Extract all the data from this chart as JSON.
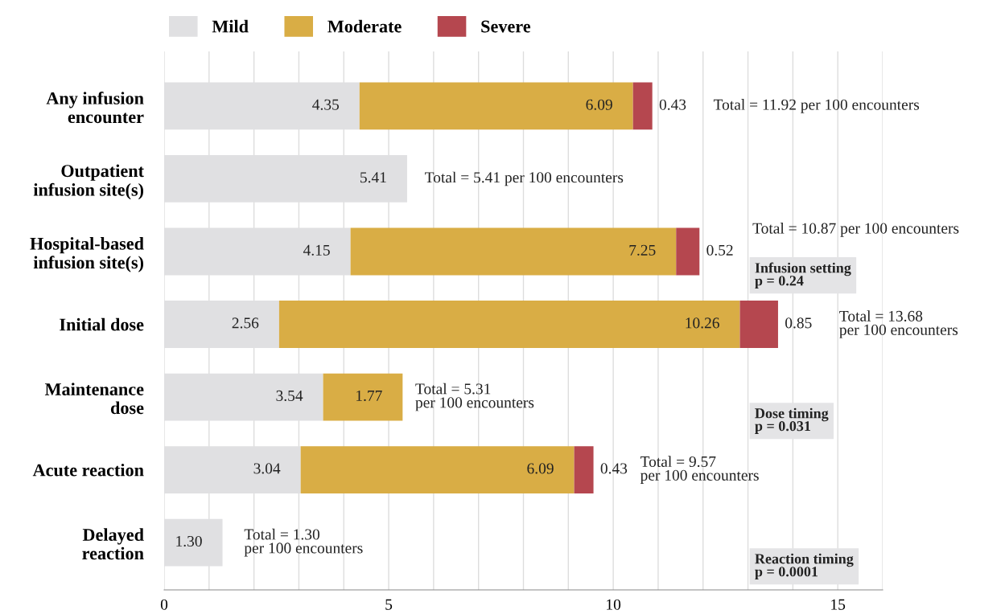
{
  "chart_data": {
    "type": "bar",
    "orientation": "horizontal",
    "stacked": true,
    "data_labels": true,
    "grid": "x",
    "legend": "top left",
    "categories": [
      "Any infusion\nencounter",
      "Outpatient\ninfusion site(s)",
      "Hospital-based\ninfusion site(s)",
      "Initial dose",
      "Maintenance\ndose",
      "Acute reaction",
      "Delayed\nreaction"
    ],
    "series": [
      {
        "name": "Mild",
        "color": "#e0e0e2",
        "values": [
          4.35,
          5.41,
          4.15,
          2.56,
          3.54,
          3.04,
          1.3
        ],
        "value_labels": [
          "4.35",
          "5.41",
          "4.15",
          "2.56",
          "3.54",
          "3.04",
          "1.30"
        ]
      },
      {
        "name": "Moderate",
        "color": "#d9ad45",
        "values": [
          6.09,
          null,
          7.25,
          10.26,
          1.77,
          6.09,
          null
        ],
        "value_labels": [
          "6.09",
          null,
          "7.25",
          "10.26",
          "1.77",
          "6.09",
          null
        ]
      },
      {
        "name": "Severe",
        "color": "#b5474f",
        "values": [
          0.43,
          null,
          0.52,
          0.85,
          null,
          0.43,
          null
        ],
        "value_labels": [
          "0.43",
          null,
          "0.52",
          "0.85",
          null,
          "0.43",
          null
        ]
      }
    ],
    "xlim": [
      0,
      16
    ],
    "xticks": [
      0,
      {
        "value": 1,
        "label": null
      },
      {
        "value": 2,
        "label": null
      },
      {
        "value": 3,
        "label": null
      },
      {
        "value": 4,
        "label": null
      },
      5,
      {
        "value": 6,
        "label": null
      },
      {
        "value": 7,
        "label": null
      },
      {
        "value": 8,
        "label": null
      },
      {
        "value": 9,
        "label": null
      },
      10,
      {
        "value": 11,
        "label": null
      },
      {
        "value": 12,
        "label": null
      },
      {
        "value": 13,
        "label": null
      },
      {
        "value": 14,
        "label": null
      },
      15,
      {
        "value": 16,
        "label": null
      }
    ],
    "annotations": [
      "Total = 11.92 per 100 encounters",
      "Total = 5.41 per 100 encounters",
      "Total = 10.87 per 100 encounters",
      "Total = 13.68\nper 100 encounters",
      "Total = 5.31\nper 100 encounters",
      "Total = 9.57\nper 100 encounters",
      "Total = 1.30\nper 100 encounters",
      "Infusion setting\np = 0.24",
      "Dose timing\np = 0.031",
      "Reaction timing\np = 0.0001"
    ]
  }
}
